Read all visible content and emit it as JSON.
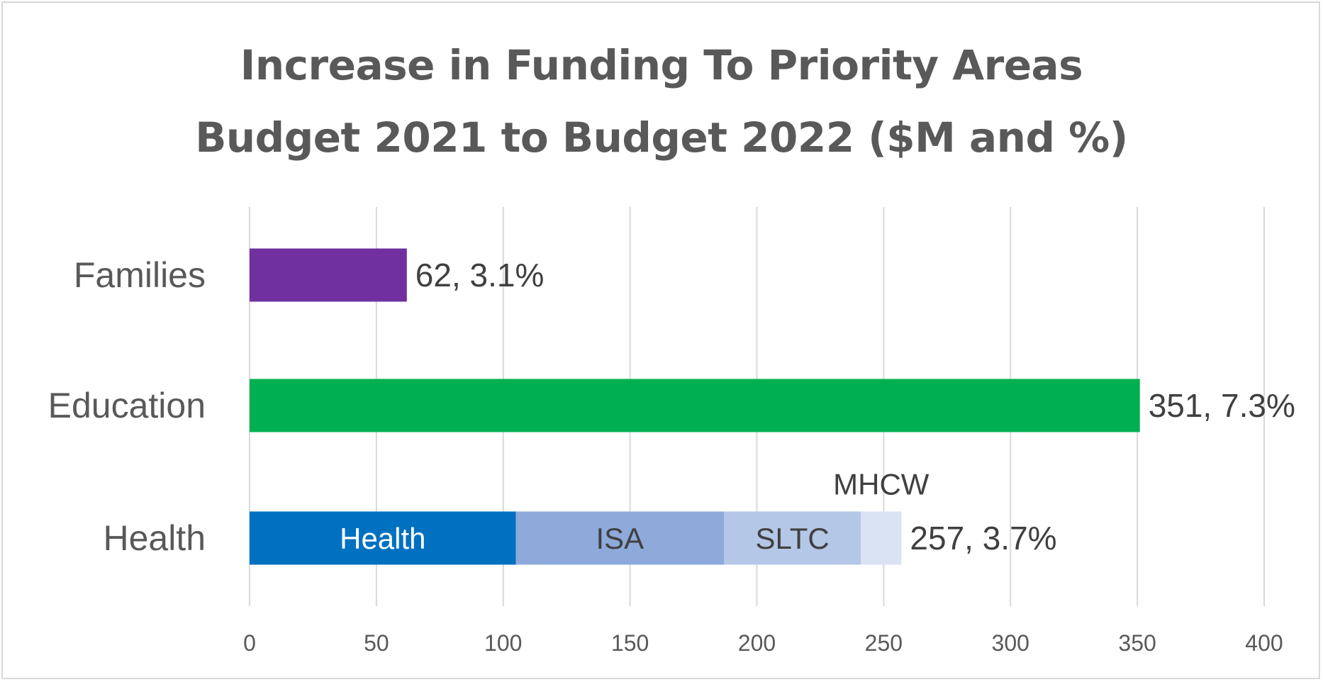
{
  "chart_data": {
    "type": "bar",
    "orientation": "horizontal",
    "stacked": true,
    "title_line1": "Increase in Funding To Priority Areas",
    "title_line2": "Budget 2021 to Budget 2022 ($M and %)",
    "xlim": [
      0,
      400
    ],
    "xticks": [
      "0",
      "50",
      "100",
      "150",
      "200",
      "250",
      "300",
      "350",
      "400"
    ],
    "grid": true,
    "categories": [
      {
        "name": "Families",
        "total_label": "62, 3.1%",
        "segments": [
          {
            "name": "",
            "value": 62,
            "color": "#7030a0",
            "label": ""
          }
        ]
      },
      {
        "name": "Education",
        "total_label": "351, 7.3%",
        "segments": [
          {
            "name": "",
            "value": 351,
            "color": "#00b050",
            "label": ""
          }
        ]
      },
      {
        "name": "Health",
        "total_label": "257, 3.7%",
        "segments": [
          {
            "name": "Health",
            "value": 105,
            "color": "#0070c0",
            "label": "Health",
            "label_color": "#ffffff"
          },
          {
            "name": "ISA",
            "value": 82,
            "color": "#8eaadb",
            "label": "ISA",
            "label_color": "#404040"
          },
          {
            "name": "SLTC",
            "value": 54,
            "color": "#b4c7e7",
            "label": "SLTC",
            "label_color": "#404040"
          },
          {
            "name": "MHCW",
            "value": 16,
            "color": "#dae3f3",
            "label": "MHCW",
            "label_color": "#404040",
            "label_above": true
          }
        ]
      }
    ]
  }
}
